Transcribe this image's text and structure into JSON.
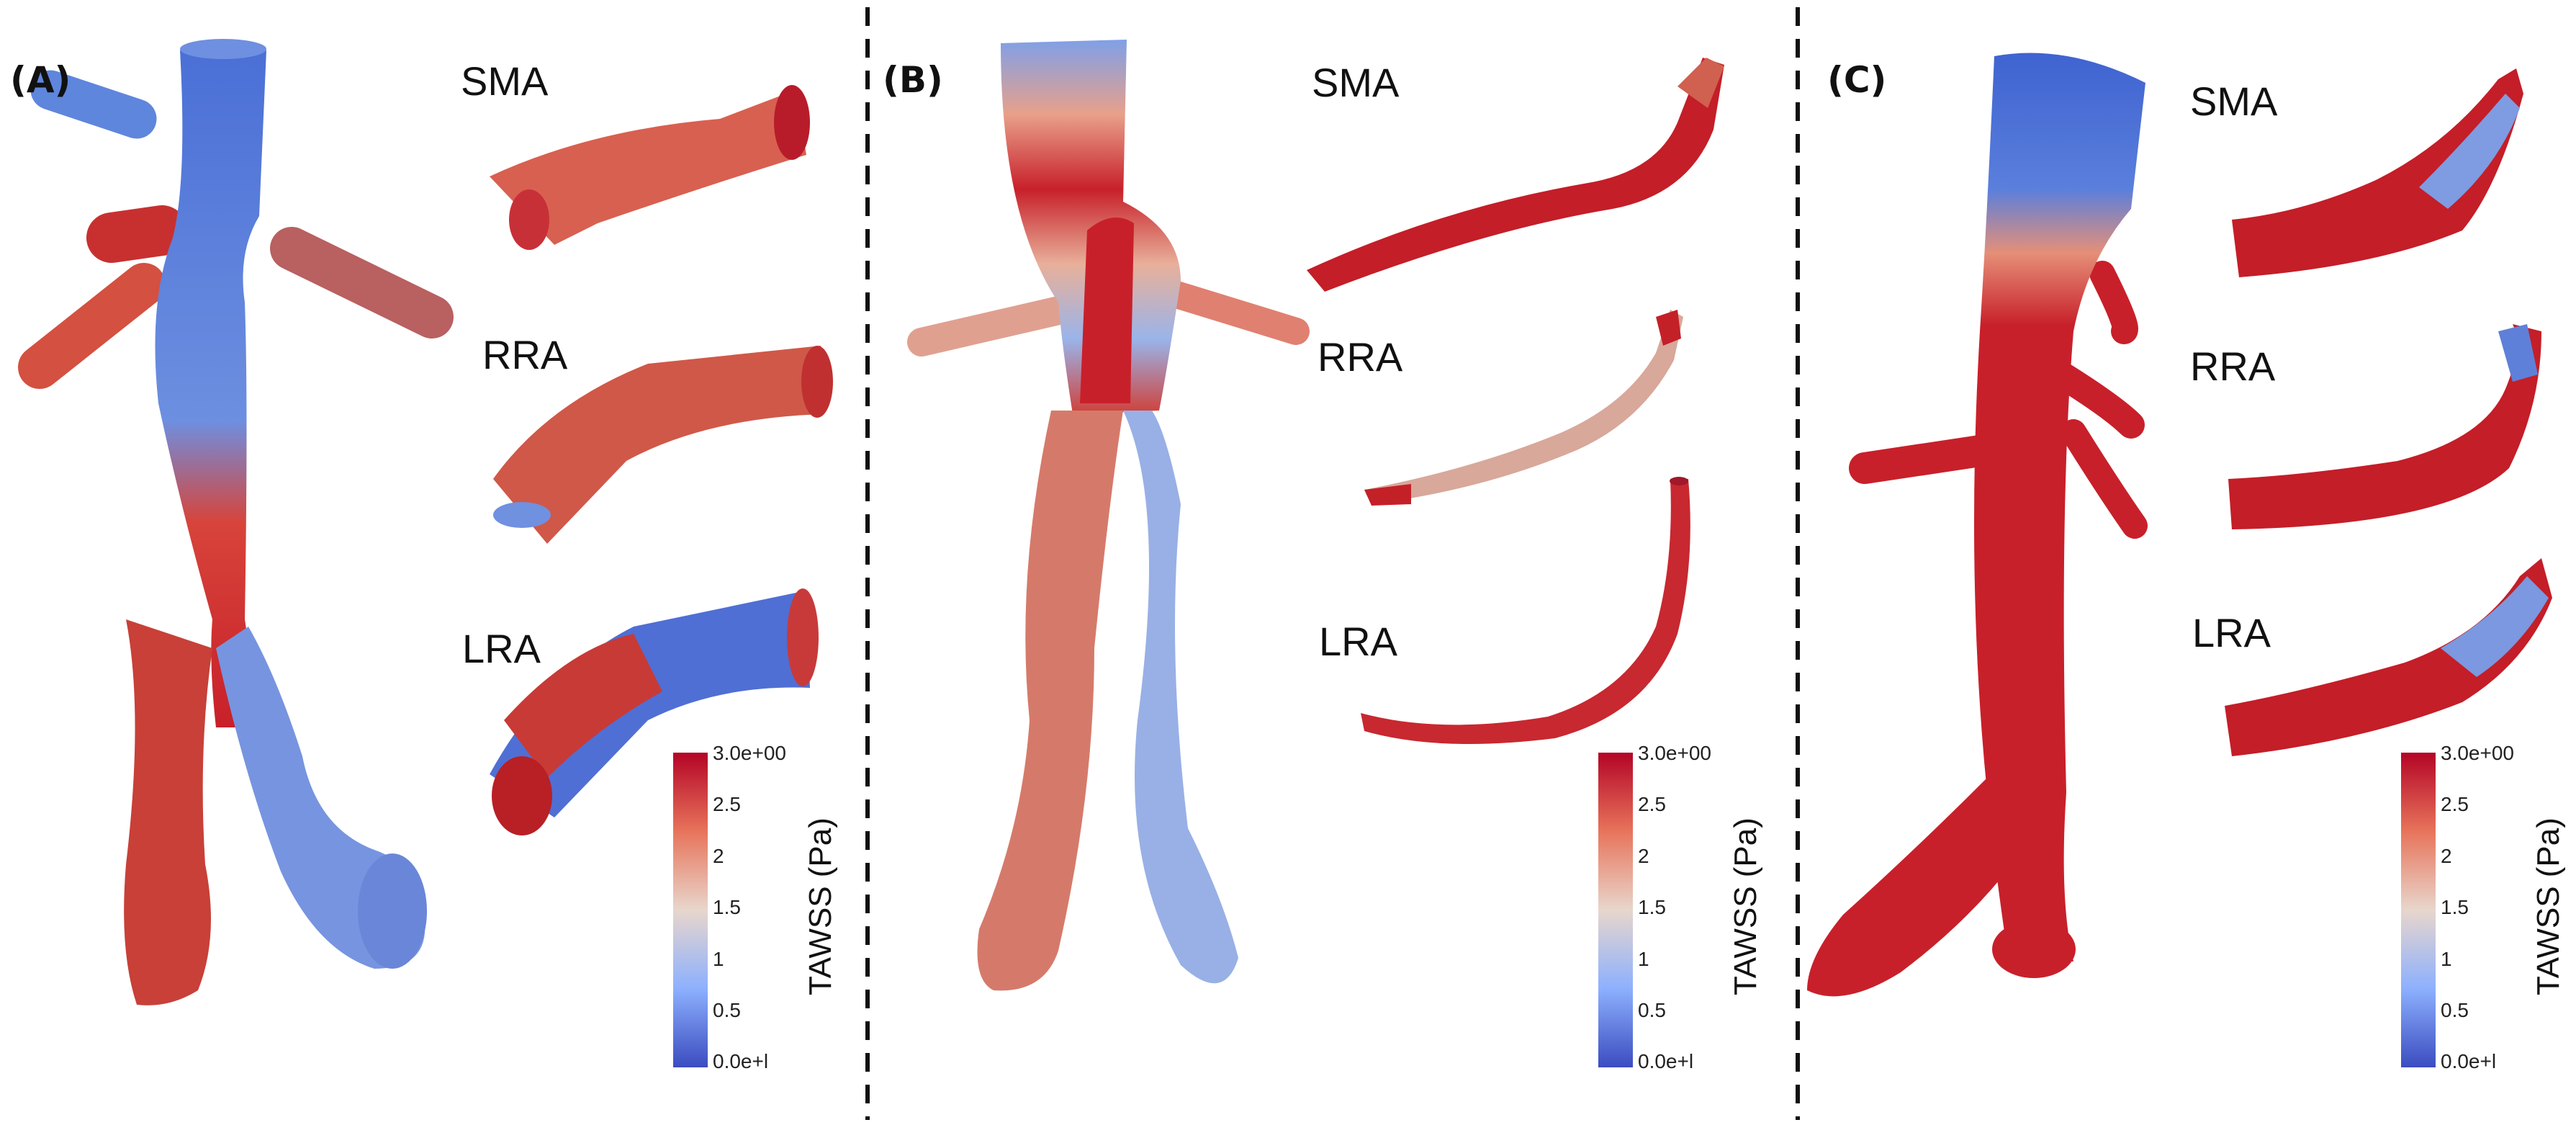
{
  "panels": [
    {
      "id": "A",
      "letter": "(A)",
      "labels": [
        "SMA",
        "RRA",
        "LRA"
      ]
    },
    {
      "id": "B",
      "letter": "(B)",
      "labels": [
        "SMA",
        "RRA",
        "LRA"
      ]
    },
    {
      "id": "C",
      "letter": "(C)",
      "labels": [
        "SMA",
        "RRA",
        "LRA"
      ]
    }
  ],
  "colorbar": {
    "title": "TAWSS  (Pa)",
    "ticks": [
      "3.0e+00",
      "2.5",
      "2",
      "1.5",
      "1",
      "0.5",
      "0.0e+l"
    ],
    "colors": {
      "low": "#3b4cc0",
      "mid": "#dddddd",
      "high": "#c8102e"
    }
  }
}
